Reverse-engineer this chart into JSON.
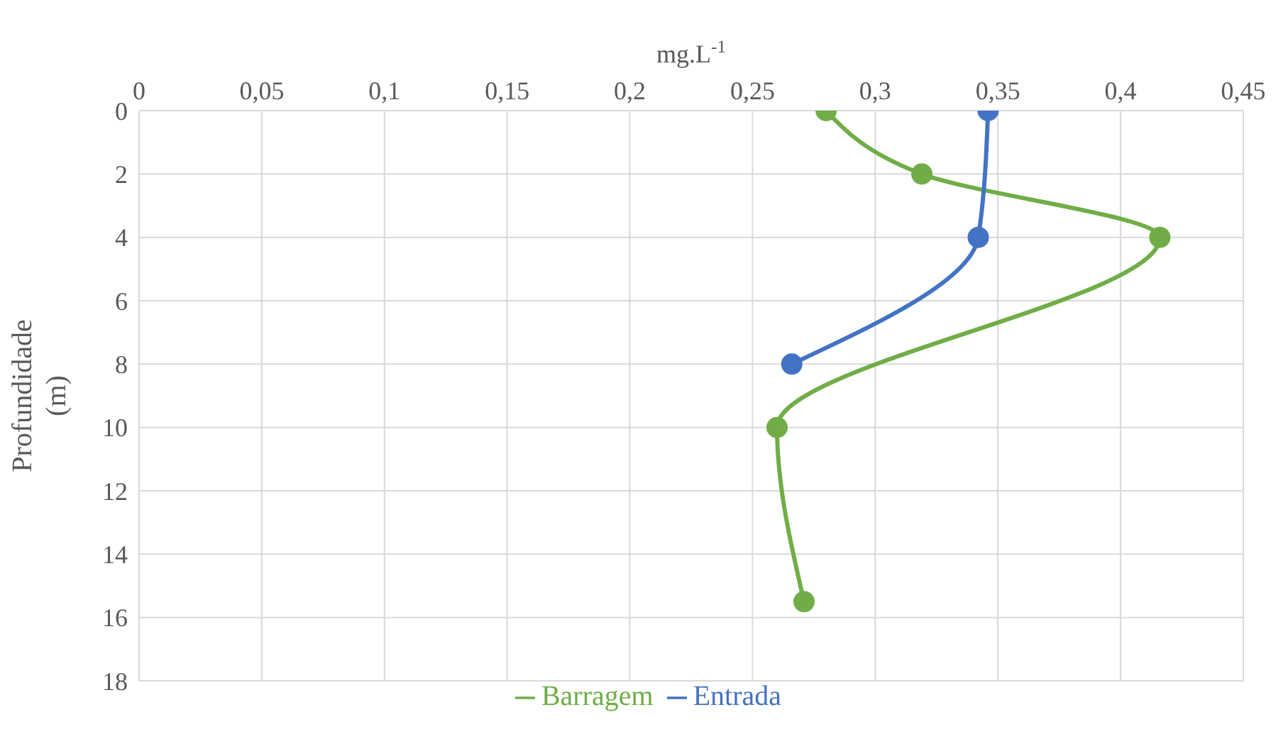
{
  "chart_data": {
    "type": "line",
    "xlabel": "mg.L$^{-1}$",
    "ylabel": "Profundidade (m)",
    "series": [
      {
        "name": "Barragem",
        "color": "#70ad47",
        "x": [
          0.28,
          0.319,
          0.416,
          0.26,
          0.271
        ],
        "values": [
          0,
          2,
          4,
          10,
          15.5
        ]
      },
      {
        "name": "Entrada",
        "color": "#4472c4",
        "x": [
          0.346,
          0.342,
          0.266
        ],
        "values": [
          0,
          4,
          8
        ]
      }
    ],
    "xlim": [
      0,
      0.45
    ],
    "xticks": [
      0,
      {
        "value": 0.05,
        "label": "0,05"
      },
      {
        "value": 0.1,
        "label": "0,1"
      },
      {
        "value": 0.15,
        "label": "0,15"
      },
      {
        "value": 0.2,
        "label": "0,2"
      },
      {
        "value": 0.25,
        "label": "0,25"
      },
      {
        "value": 0.3,
        "label": "0,3"
      },
      {
        "value": 0.35,
        "label": "0,35"
      },
      {
        "value": 0.4,
        "label": "0,4"
      },
      {
        "value": 0.45,
        "label": "0,45"
      }
    ],
    "ylim": [
      18,
      0
    ],
    "yticks": [
      0,
      2,
      4,
      6,
      8,
      10,
      12,
      14,
      16,
      18
    ],
    "grid": true,
    "legend": "bottom",
    "marker": "circle",
    "line_style": "solid"
  }
}
